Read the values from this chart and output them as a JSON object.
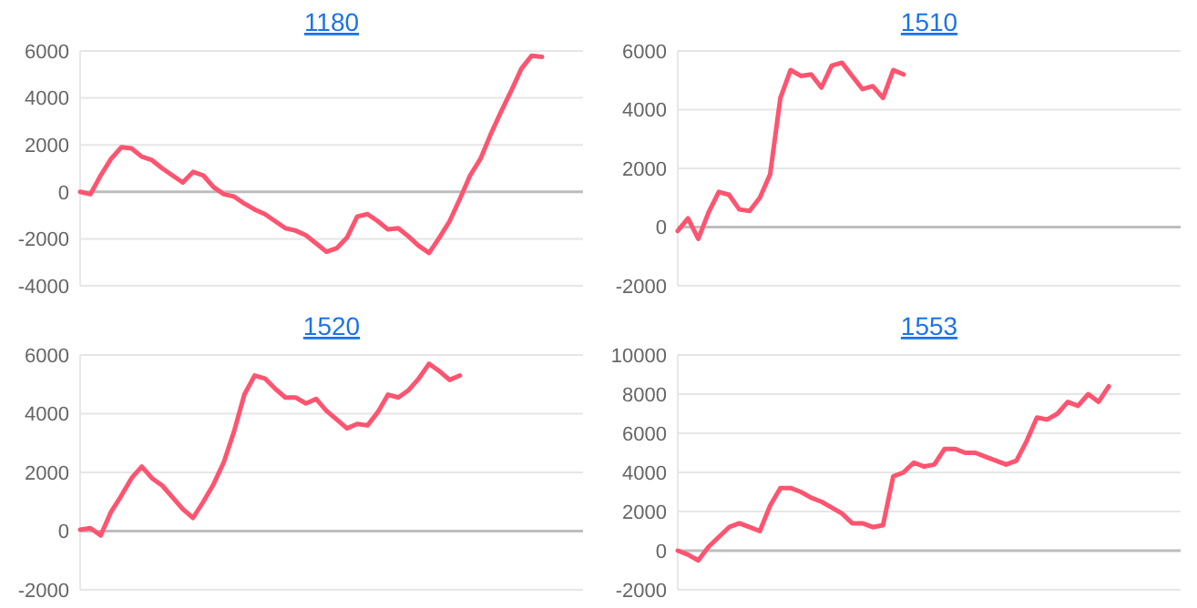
{
  "chart_data": [
    {
      "type": "line",
      "title": "1180",
      "categories": [
        null,
        null,
        null,
        null,
        null,
        null,
        null,
        null,
        null,
        null,
        null,
        null,
        null,
        null,
        null,
        null,
        null,
        null,
        null,
        null,
        null,
        null,
        null,
        null,
        null,
        null,
        null,
        null,
        null,
        null,
        null,
        null,
        null,
        null,
        null,
        null,
        null,
        null,
        null,
        null,
        null,
        null,
        null,
        null,
        null,
        null,
        null,
        null,
        null,
        null
      ],
      "values": [
        0,
        -100,
        700,
        1400,
        1900,
        1850,
        1500,
        1350,
        1000,
        700,
        400,
        850,
        700,
        200,
        -100,
        -200,
        -500,
        -750,
        -950,
        -1250,
        -1550,
        -1650,
        -1850,
        -2200,
        -2550,
        -2400,
        -1950,
        -1050,
        -950,
        -1250,
        -1600,
        -1550,
        -1900,
        -2300,
        -2600,
        -1950,
        -1250,
        -300,
        700,
        1400,
        2450,
        3400,
        4300,
        5250,
        5800,
        5750,
        null,
        null,
        null,
        null
      ],
      "color": "#ff5470",
      "ylim": [
        -4000,
        6000
      ],
      "yticks": [
        -4000,
        -2000,
        0,
        2000,
        4000,
        6000
      ],
      "grid": "y",
      "tick_labels": "y"
    },
    {
      "type": "line",
      "title": "1510",
      "categories": [
        null,
        null,
        null,
        null,
        null,
        null,
        null,
        null,
        null,
        null,
        null,
        null,
        null,
        null,
        null,
        null,
        null,
        null,
        null,
        null,
        null,
        null,
        null,
        null,
        null,
        null,
        null,
        null,
        null,
        null,
        null,
        null,
        null,
        null,
        null,
        null,
        null,
        null,
        null,
        null,
        null,
        null,
        null,
        null,
        null,
        null,
        null,
        null,
        null,
        null
      ],
      "values": [
        -130,
        300,
        -400,
        500,
        1200,
        1100,
        600,
        550,
        1000,
        1800,
        4400,
        5350,
        5150,
        5200,
        4750,
        5500,
        5600,
        5150,
        4700,
        4800,
        4400,
        5350,
        5200,
        null,
        null,
        null,
        null,
        null,
        null,
        null,
        null,
        null,
        null,
        null,
        null,
        null,
        null,
        null,
        null,
        null,
        null,
        null,
        null,
        null,
        null,
        null,
        null,
        null,
        null,
        null
      ],
      "color": "#ff5470",
      "ylim": [
        -2000,
        6000
      ],
      "yticks": [
        -2000,
        0,
        2000,
        4000,
        6000
      ],
      "grid": "y",
      "tick_labels": "y"
    },
    {
      "type": "line",
      "title": "1520",
      "categories": [
        null,
        null,
        null,
        null,
        null,
        null,
        null,
        null,
        null,
        null,
        null,
        null,
        null,
        null,
        null,
        null,
        null,
        null,
        null,
        null,
        null,
        null,
        null,
        null,
        null,
        null,
        null,
        null,
        null,
        null,
        null,
        null,
        null,
        null,
        null,
        null,
        null,
        null,
        null,
        null,
        null,
        null,
        null,
        null,
        null,
        null,
        null,
        null,
        null,
        null
      ],
      "values": [
        50,
        100,
        -150,
        650,
        1200,
        1800,
        2200,
        1800,
        1550,
        1150,
        750,
        450,
        1000,
        1600,
        2350,
        3400,
        4650,
        5300,
        5200,
        4850,
        4550,
        4550,
        4350,
        4500,
        4100,
        3800,
        3500,
        3650,
        3600,
        4050,
        4650,
        4550,
        4800,
        5200,
        5700,
        5450,
        5150,
        5300,
        null,
        null,
        null,
        null,
        null,
        null,
        null,
        null,
        null,
        null,
        null,
        null
      ],
      "color": "#ff5470",
      "ylim": [
        -2000,
        6000
      ],
      "yticks": [
        -2000,
        0,
        2000,
        4000,
        6000
      ],
      "grid": "y",
      "tick_labels": "y"
    },
    {
      "type": "line",
      "title": "1553",
      "categories": [
        null,
        null,
        null,
        null,
        null,
        null,
        null,
        null,
        null,
        null,
        null,
        null,
        null,
        null,
        null,
        null,
        null,
        null,
        null,
        null,
        null,
        null,
        null,
        null,
        null,
        null,
        null,
        null,
        null,
        null,
        null,
        null,
        null,
        null,
        null,
        null,
        null,
        null,
        null,
        null,
        null,
        null,
        null,
        null,
        null,
        null,
        null,
        null,
        null,
        null
      ],
      "values": [
        0,
        -200,
        -500,
        200,
        700,
        1200,
        1400,
        1200,
        1000,
        2300,
        3200,
        3200,
        3000,
        2700,
        2500,
        2200,
        1900,
        1400,
        1400,
        1200,
        1300,
        3800,
        4000,
        4500,
        4300,
        4400,
        5200,
        5200,
        5000,
        5000,
        4800,
        4600,
        4400,
        4600,
        5600,
        6800,
        6700,
        7000,
        7600,
        7400,
        8000,
        7600,
        8400,
        null,
        null,
        null,
        null,
        null,
        null,
        null
      ],
      "color": "#ff5470",
      "ylim": [
        -2000,
        10000
      ],
      "yticks": [
        -2000,
        0,
        2000,
        4000,
        6000,
        8000,
        10000
      ],
      "grid": "y",
      "tick_labels": "y"
    }
  ]
}
